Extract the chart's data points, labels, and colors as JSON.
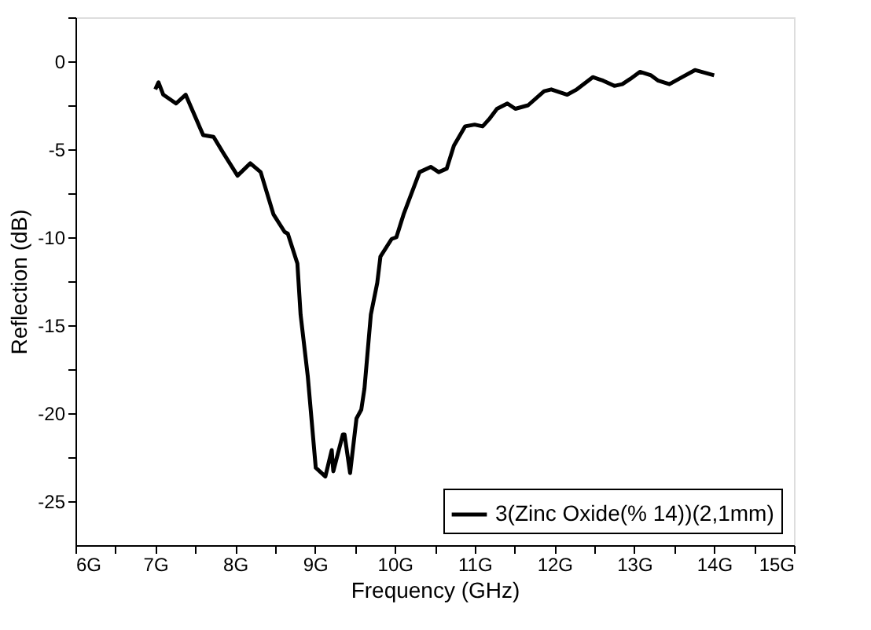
{
  "chart_data": {
    "type": "line",
    "xlabel": "Frequency (GHz)",
    "ylabel": "Reflection (dB)",
    "xlim": [
      6,
      15
    ],
    "ylim": [
      -27.5,
      2.5
    ],
    "xticks": [
      {
        "value": 6,
        "label": "6G"
      },
      {
        "value": 6.5,
        "label": null
      },
      {
        "value": 7,
        "label": "7G"
      },
      {
        "value": 7.5,
        "label": null
      },
      {
        "value": 8,
        "label": "8G"
      },
      {
        "value": 8.5,
        "label": null
      },
      {
        "value": 9,
        "label": "9G"
      },
      {
        "value": 9.5,
        "label": null
      },
      {
        "value": 10,
        "label": "10G"
      },
      {
        "value": 10.5,
        "label": null
      },
      {
        "value": 11,
        "label": "11G"
      },
      {
        "value": 11.5,
        "label": null
      },
      {
        "value": 12,
        "label": "12G"
      },
      {
        "value": 12.5,
        "label": null
      },
      {
        "value": 13,
        "label": "13G"
      },
      {
        "value": 13.5,
        "label": null
      },
      {
        "value": 14,
        "label": "14G"
      },
      {
        "value": 14.5,
        "label": null
      },
      {
        "value": 15,
        "label": "15G"
      }
    ],
    "yticks": [
      -25,
      {
        "value": -22.5,
        "label": null
      },
      -20,
      {
        "value": -17.5,
        "label": null
      },
      -15,
      {
        "value": -12.5,
        "label": null
      },
      -10,
      {
        "value": -7.5,
        "label": null
      },
      -5,
      {
        "value": -2.5,
        "label": null
      },
      0,
      {
        "value": 2.5,
        "label": null
      }
    ],
    "grid": false,
    "legend": "bottom right",
    "marker": "none",
    "line_style": "solid",
    "series": [
      {
        "name": "3(Zinc Oxide(% 14))(2,1mm)",
        "color": "#000000",
        "x": [
          7.0,
          7.04,
          7.1,
          7.26,
          7.38,
          7.6,
          7.73,
          7.85,
          8.03,
          8.19,
          8.32,
          8.48,
          8.62,
          8.66,
          8.78,
          8.82,
          8.91,
          9.01,
          9.13,
          9.21,
          9.23,
          9.35,
          9.37,
          9.44,
          9.52,
          9.58,
          9.62,
          9.7,
          9.78,
          9.82,
          9.96,
          10.02,
          10.11,
          10.31,
          10.45,
          10.55,
          10.65,
          10.74,
          10.88,
          11.0,
          11.1,
          11.18,
          11.28,
          11.41,
          11.51,
          11.67,
          11.87,
          11.96,
          12.16,
          12.28,
          12.48,
          12.61,
          12.75,
          12.85,
          12.95,
          13.07,
          13.21,
          13.3,
          13.44,
          13.6,
          13.76,
          14.0
        ],
        "values": [
          -1.6,
          -1.2,
          -1.9,
          -2.4,
          -1.9,
          -4.2,
          -4.3,
          -5.2,
          -6.5,
          -5.8,
          -6.3,
          -8.7,
          -9.7,
          -9.8,
          -11.5,
          -14.4,
          -17.9,
          -23.1,
          -23.6,
          -22.1,
          -23.3,
          -21.2,
          -21.2,
          -23.4,
          -20.3,
          -19.8,
          -18.6,
          -14.4,
          -12.6,
          -11.1,
          -10.1,
          -10.0,
          -8.7,
          -6.3,
          -6.0,
          -6.3,
          -6.1,
          -4.8,
          -3.7,
          -3.6,
          -3.7,
          -3.3,
          -2.7,
          -2.4,
          -2.7,
          -2.5,
          -1.7,
          -1.6,
          -1.9,
          -1.6,
          -0.9,
          -1.1,
          -1.4,
          -1.3,
          -1.0,
          -0.6,
          -0.8,
          -1.1,
          -1.3,
          -0.9,
          -0.5,
          -0.8
        ]
      }
    ]
  }
}
